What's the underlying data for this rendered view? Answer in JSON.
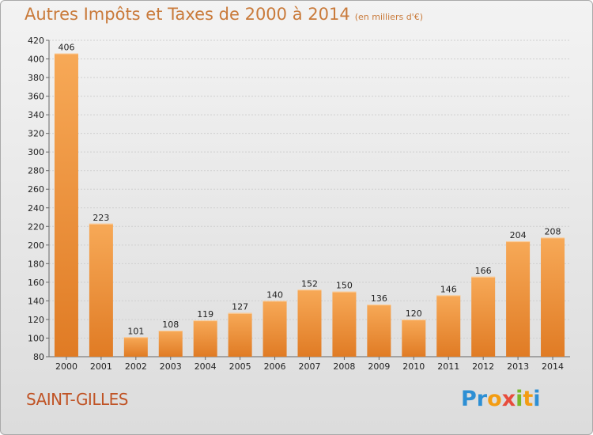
{
  "header": {
    "title": "Autres Impôts et Taxes de 2000 à 2014",
    "subtitle": "(en milliers d'€)"
  },
  "footer": {
    "commune": "SAINT-GILLES",
    "logo_letters": [
      "P",
      "r",
      "o",
      "x",
      "i",
      "t",
      "i"
    ]
  },
  "colors": {
    "bar_light": "#f7a957",
    "bar_dark": "#e07b24",
    "axis_text": "#222222",
    "title": "#c97a3a",
    "logo": [
      "#2d8fd4",
      "#2d8fd4",
      "#f39c12",
      "#e74c3c",
      "#7ab829",
      "#f39c12",
      "#2d8fd4"
    ]
  },
  "chart_data": {
    "type": "bar",
    "categories": [
      "2000",
      "2001",
      "2002",
      "2003",
      "2004",
      "2005",
      "2006",
      "2007",
      "2008",
      "2009",
      "2010",
      "2011",
      "2012",
      "2013",
      "2014"
    ],
    "values": [
      406,
      223,
      101,
      108,
      119,
      127,
      140,
      152,
      150,
      136,
      120,
      146,
      166,
      204,
      208
    ],
    "title": "Autres Impôts et Taxes de 2000 à 2014",
    "subtitle": "(en milliers d'€)",
    "ylim": [
      80,
      420
    ],
    "yticks": [
      80,
      100,
      120,
      140,
      160,
      180,
      200,
      220,
      240,
      260,
      280,
      300,
      320,
      340,
      360,
      380,
      400,
      420
    ],
    "grid": true,
    "data_labels": true
  }
}
